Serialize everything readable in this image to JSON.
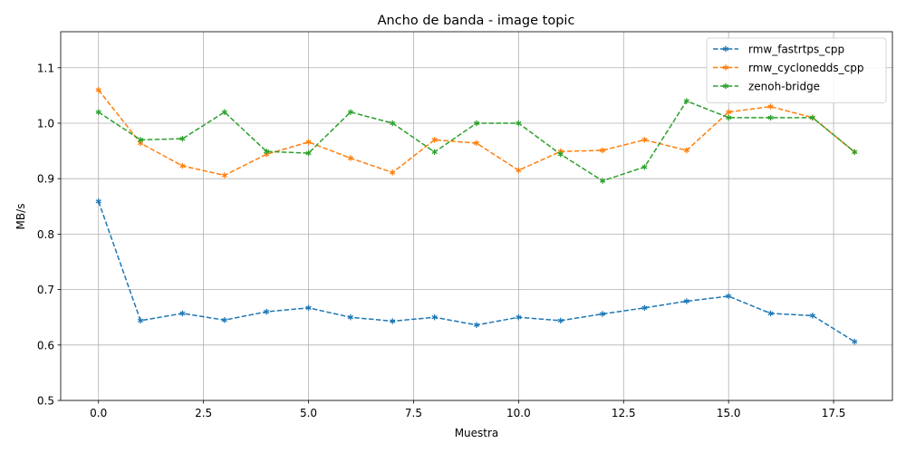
{
  "chart_data": {
    "type": "line",
    "title": "Ancho de banda - image topic",
    "xlabel": "Muestra",
    "ylabel": "MB/s",
    "xlim": [
      -0.9,
      18.9
    ],
    "ylim": [
      0.5,
      1.165
    ],
    "xticks": [
      0.0,
      2.5,
      5.0,
      7.5,
      10.0,
      12.5,
      15.0,
      17.5
    ],
    "xtick_labels": [
      "0.0",
      "2.5",
      "5.0",
      "7.5",
      "10.0",
      "12.5",
      "15.0",
      "17.5"
    ],
    "yticks": [
      0.5,
      0.6,
      0.7,
      0.8,
      0.9,
      1.0,
      1.1
    ],
    "ytick_labels": [
      "0.5",
      "0.6",
      "0.7",
      "0.8",
      "0.9",
      "1.0",
      "1.1"
    ],
    "grid": true,
    "legend_position": "top-right",
    "x": [
      0,
      1,
      2,
      3,
      4,
      5,
      6,
      7,
      8,
      9,
      10,
      11,
      12,
      13,
      14,
      15,
      16,
      17,
      18
    ],
    "series": [
      {
        "name": "rmw_fastrtps_cpp",
        "color": "#1f77b4",
        "values": [
          0.859,
          0.644,
          0.657,
          0.645,
          0.66,
          0.667,
          0.65,
          0.643,
          0.65,
          0.636,
          0.65,
          0.644,
          0.656,
          0.667,
          0.679,
          0.688,
          0.657,
          0.653,
          0.606
        ]
      },
      {
        "name": "rmw_cyclonedds_cpp",
        "color": "#ff7f0e",
        "values": [
          1.06,
          0.964,
          0.923,
          0.906,
          0.944,
          0.966,
          0.937,
          0.911,
          0.97,
          0.964,
          0.915,
          0.949,
          0.951,
          0.97,
          0.951,
          1.02,
          1.03,
          1.01,
          0.948
        ]
      },
      {
        "name": "zenoh-bridge",
        "color": "#2ca02c",
        "values": [
          1.02,
          0.97,
          0.972,
          1.02,
          0.949,
          0.946,
          1.02,
          1.0,
          0.948,
          1.0,
          1.0,
          0.944,
          0.896,
          0.921,
          1.04,
          1.01,
          1.01,
          1.01,
          0.948
        ]
      }
    ]
  }
}
